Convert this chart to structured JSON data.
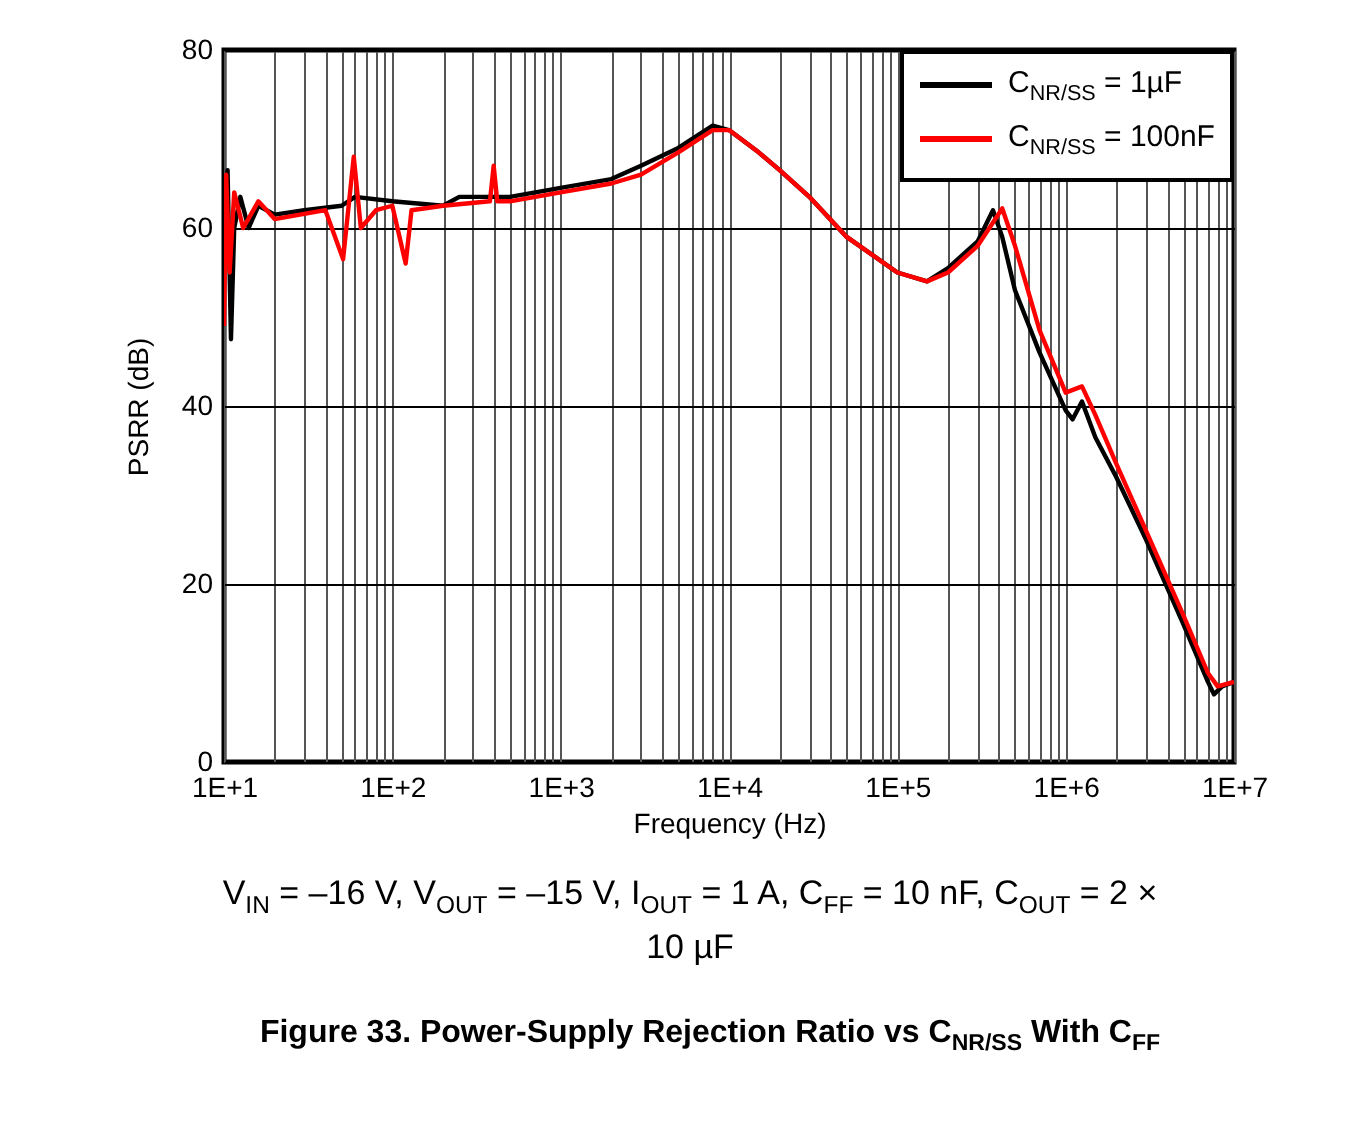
{
  "chart_data": {
    "type": "line",
    "title": "Figure 33. Power-Supply Rejection Ratio vs C$_{NR/SS}$ With C$_{FF}$",
    "xlabel": "Frequency (Hz)",
    "ylabel": "PSRR (dB)",
    "annotations": [
      "V$_{IN}$ = –16 V, V$_{OUT}$ = –15 V, I$_{OUT}$ = 1 A, C$_{FF}$ = 10 nF, C$_{OUT}$ = 2 × 10 µF"
    ],
    "log": "x",
    "grid": true,
    "legend": "top right",
    "line_style": "solid",
    "marker": "none",
    "xlim": [
      10,
      10000000
    ],
    "ylim": [
      0,
      80
    ],
    "yticks": [
      0,
      20,
      40,
      60,
      80
    ],
    "xticks": [
      {
        "value": 10,
        "label": "1E+1"
      },
      {
        "value": 20,
        "label": null
      },
      {
        "value": 30,
        "label": null
      },
      {
        "value": 40,
        "label": null
      },
      {
        "value": 50,
        "label": null
      },
      {
        "value": 60,
        "label": null
      },
      {
        "value": 70,
        "label": null
      },
      {
        "value": 80,
        "label": null
      },
      {
        "value": 90,
        "label": null
      },
      {
        "value": 100,
        "label": "1E+2"
      },
      {
        "value": 200,
        "label": null
      },
      {
        "value": 300,
        "label": null
      },
      {
        "value": 400,
        "label": null
      },
      {
        "value": 500,
        "label": null
      },
      {
        "value": 600,
        "label": null
      },
      {
        "value": 700,
        "label": null
      },
      {
        "value": 800,
        "label": null
      },
      {
        "value": 900,
        "label": null
      },
      {
        "value": 1000,
        "label": "1E+3"
      },
      {
        "value": 2000,
        "label": null
      },
      {
        "value": 3000,
        "label": null
      },
      {
        "value": 4000,
        "label": null
      },
      {
        "value": 5000,
        "label": null
      },
      {
        "value": 6000,
        "label": null
      },
      {
        "value": 7000,
        "label": null
      },
      {
        "value": 8000,
        "label": null
      },
      {
        "value": 9000,
        "label": null
      },
      {
        "value": 10000,
        "label": "1E+4"
      },
      {
        "value": 20000,
        "label": null
      },
      {
        "value": 30000,
        "label": null
      },
      {
        "value": 40000,
        "label": null
      },
      {
        "value": 50000,
        "label": null
      },
      {
        "value": 60000,
        "label": null
      },
      {
        "value": 70000,
        "label": null
      },
      {
        "value": 80000,
        "label": null
      },
      {
        "value": 90000,
        "label": null
      },
      {
        "value": 100000,
        "label": "1E+5"
      },
      {
        "value": 200000,
        "label": null
      },
      {
        "value": 300000,
        "label": null
      },
      {
        "value": 400000,
        "label": null
      },
      {
        "value": 500000,
        "label": null
      },
      {
        "value": 600000,
        "label": null
      },
      {
        "value": 700000,
        "label": null
      },
      {
        "value": 800000,
        "label": null
      },
      {
        "value": 900000,
        "label": null
      },
      {
        "value": 1000000,
        "label": "1E+6"
      },
      {
        "value": 2000000,
        "label": null
      },
      {
        "value": 3000000,
        "label": null
      },
      {
        "value": 4000000,
        "label": null
      },
      {
        "value": 5000000,
        "label": null
      },
      {
        "value": 6000000,
        "label": null
      },
      {
        "value": 7000000,
        "label": null
      },
      {
        "value": 8000000,
        "label": null
      },
      {
        "value": 9000000,
        "label": null
      },
      {
        "value": 10000000,
        "label": "1E+7"
      }
    ],
    "series": [
      {
        "name": "C$_{NR/SS}$ = 1µF",
        "color": "#000000",
        "x": [
          10,
          10.5,
          11,
          11.5,
          12.5,
          14,
          16,
          20,
          30,
          50,
          60,
          100,
          200,
          250,
          500,
          1000,
          2000,
          3000,
          5000,
          8000,
          10000,
          15000,
          20000,
          30000,
          50000,
          100000,
          150000,
          200000,
          300000,
          370000,
          420000,
          500000,
          700000,
          1000000,
          1100000,
          1250000,
          1500000,
          2000000,
          3000000,
          5000000,
          7000000,
          7600000,
          8500000,
          10000000
        ],
        "values": [
          58,
          66.5,
          47.5,
          60,
          63.5,
          60,
          62.5,
          61.5,
          62,
          62.5,
          63.5,
          63,
          62.5,
          63.5,
          63.5,
          64.5,
          65.5,
          67,
          69,
          71.5,
          71,
          68.5,
          66.5,
          63.5,
          59,
          55,
          54,
          55.5,
          58.5,
          62,
          59,
          53,
          46,
          39.5,
          38.5,
          40.5,
          36.5,
          32,
          25,
          15.5,
          9,
          7.6,
          8.5,
          9
        ]
      },
      {
        "name": "C$_{NR/SS}$ = 100nF",
        "color": "#ff0000",
        "x": [
          10,
          10.3,
          10.8,
          11.5,
          13,
          16,
          20,
          40,
          51,
          59,
          65,
          80,
          100,
          120,
          130,
          200,
          380,
          400,
          420,
          500,
          1000,
          2000,
          3000,
          5000,
          8000,
          10000,
          15000,
          20000,
          30000,
          50000,
          100000,
          150000,
          200000,
          300000,
          420000,
          500000,
          700000,
          1000000,
          1250000,
          1500000,
          2000000,
          3000000,
          5000000,
          7000000,
          8000000,
          10000000
        ],
        "values": [
          49,
          66,
          55,
          64,
          60,
          63,
          61,
          62,
          56.5,
          68,
          60,
          62,
          62.5,
          56,
          62,
          62.5,
          63,
          67,
          63,
          63,
          64,
          65,
          66,
          68.5,
          71,
          71,
          68.5,
          66.5,
          63.5,
          59,
          55,
          54,
          55,
          58,
          62.2,
          58,
          48.5,
          41.5,
          42.2,
          39,
          33.5,
          26,
          16.5,
          10,
          8.5,
          9
        ]
      }
    ]
  }
}
